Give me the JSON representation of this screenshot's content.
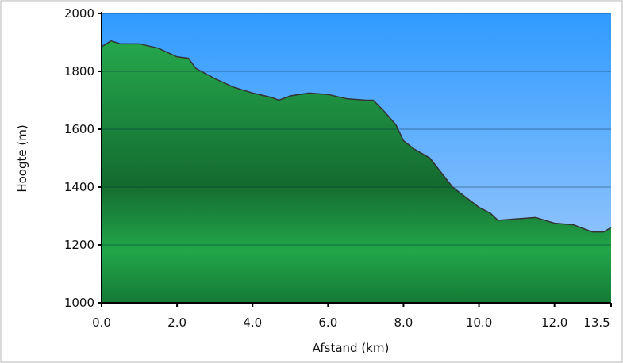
{
  "chart_data": {
    "type": "area",
    "x_label": "Afstand (km)",
    "y_label": "Hoogte (m)",
    "x": [
      0,
      0.25,
      0.5,
      1.0,
      1.5,
      2.0,
      2.3,
      2.5,
      3.0,
      3.5,
      4.0,
      4.5,
      4.7,
      5.0,
      5.5,
      6.0,
      6.5,
      7.0,
      7.2,
      7.5,
      7.8,
      8.0,
      8.3,
      8.7,
      9.0,
      9.3,
      9.6,
      10.0,
      10.3,
      10.5,
      11.0,
      11.5,
      12.0,
      12.5,
      13.0,
      13.3,
      13.5
    ],
    "values": [
      1885,
      1905,
      1895,
      1895,
      1880,
      1850,
      1845,
      1810,
      1775,
      1745,
      1725,
      1710,
      1700,
      1715,
      1725,
      1720,
      1705,
      1700,
      1700,
      1660,
      1615,
      1560,
      1530,
      1500,
      1450,
      1400,
      1370,
      1330,
      1310,
      1285,
      1290,
      1295,
      1275,
      1270,
      1245,
      1245,
      1260
    ],
    "color": "#1f9a45",
    "xlim": [
      0,
      13.5
    ],
    "ylim": [
      1000,
      2000
    ],
    "xticks": [
      {
        "value": 0,
        "label": "0.0"
      },
      {
        "value": 2,
        "label": "2.0"
      },
      {
        "value": 4,
        "label": "4.0"
      },
      {
        "value": 6,
        "label": "6.0"
      },
      {
        "value": 8,
        "label": "8.0"
      },
      {
        "value": 10,
        "label": "10.0"
      },
      {
        "value": 12,
        "label": "12.0"
      },
      13.5
    ],
    "yticks": [
      1000,
      1200,
      1400,
      1600,
      1800,
      2000
    ],
    "grid": true
  }
}
